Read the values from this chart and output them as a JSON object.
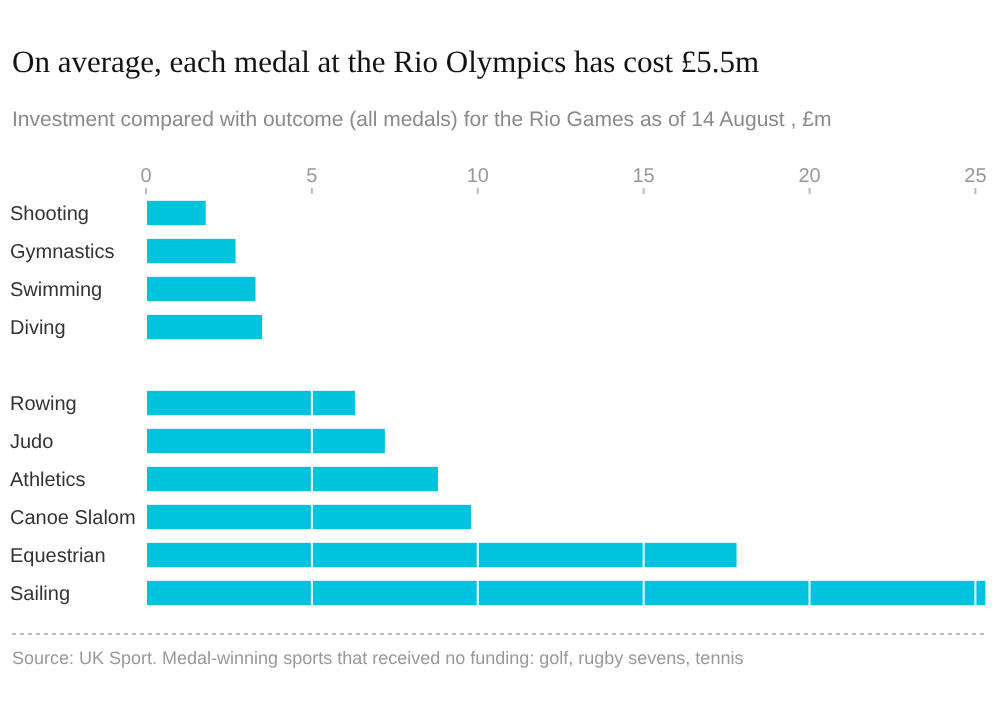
{
  "chart_data": {
    "type": "bar",
    "orientation": "horizontal",
    "title": "On average, each medal at the Rio Olympics has cost £5.5m",
    "subtitle": "Investment compared with outcome (all medals) for the Rio Games as of 14 August , £m",
    "categories": [
      "Shooting",
      "Gymnastics",
      "Swimming",
      "Diving",
      null,
      "Rowing",
      "Judo",
      "Athletics",
      "Canoe Slalom",
      "Equestrian",
      "Sailing"
    ],
    "values": [
      1.8,
      2.7,
      3.3,
      3.5,
      null,
      6.3,
      7.2,
      8.8,
      9.8,
      17.8,
      25.3
    ],
    "color": "#00c4de",
    "xlim": [
      0,
      25.5
    ],
    "xticks": [
      0,
      5,
      10,
      15,
      20,
      25
    ],
    "grid": "x",
    "annotations": [
      "Source: UK Sport. Medal-winning sports that received no funding: golf, rugby sevens, tennis"
    ]
  }
}
